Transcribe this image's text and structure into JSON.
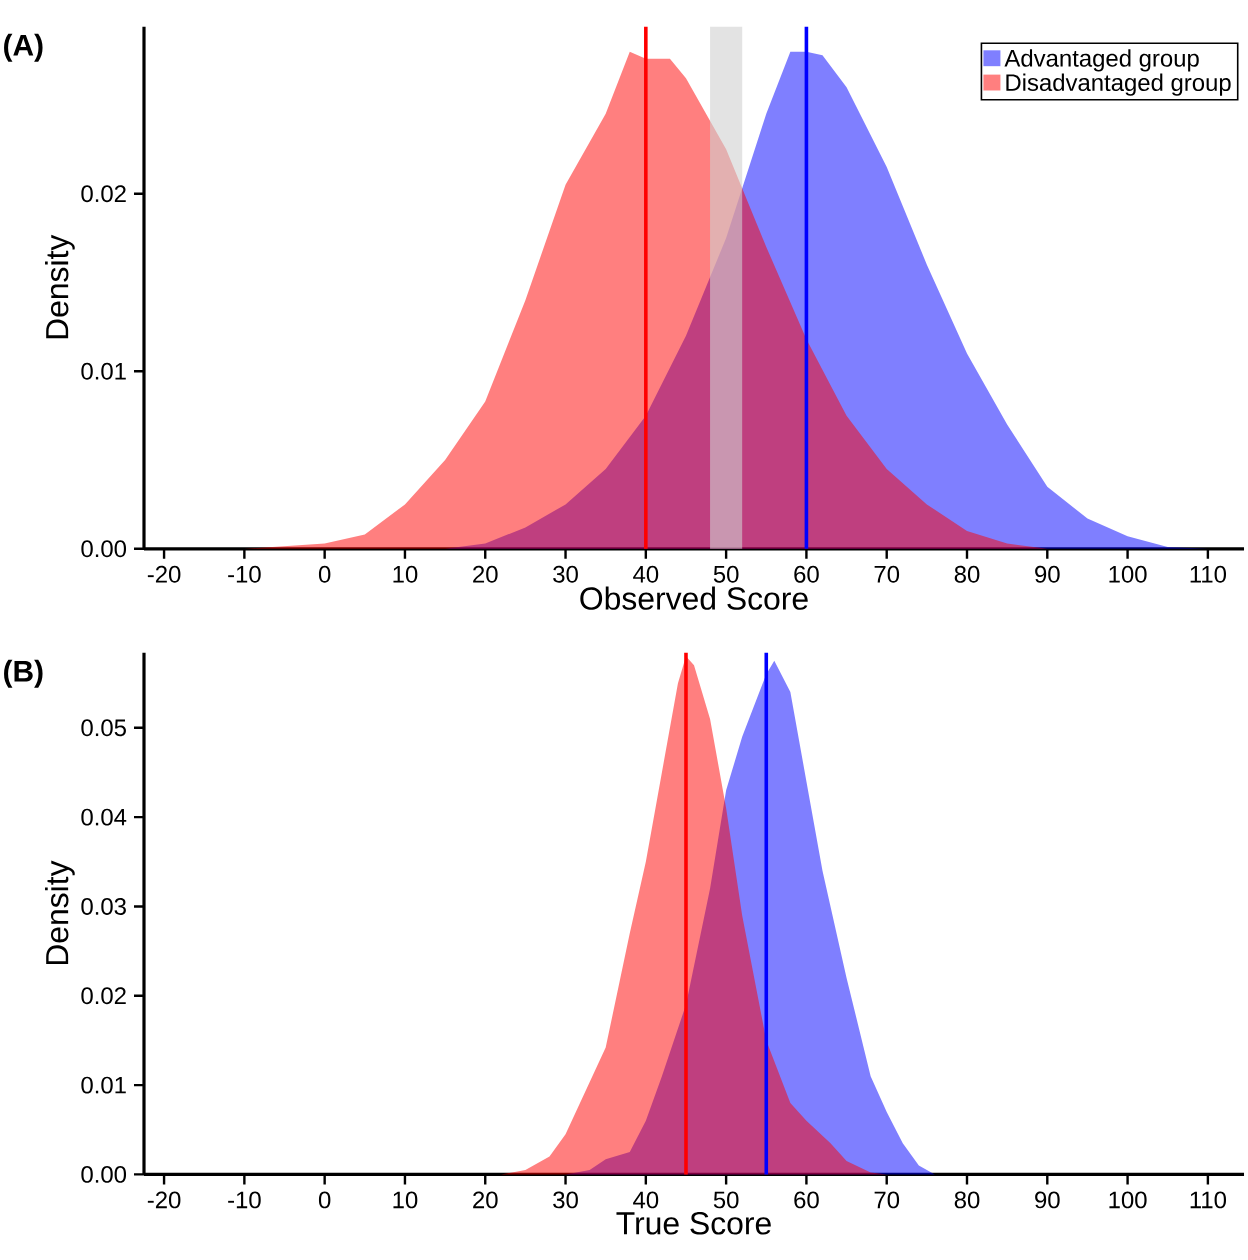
{
  "chart_data": [
    {
      "type": "area",
      "title": "(A)",
      "xlabel": "Observed Score",
      "ylabel": "Density",
      "xlim": [
        -22.5,
        114.5
      ],
      "ylim": [
        0,
        0.0294
      ],
      "xticks": [
        -20,
        -10,
        0,
        10,
        20,
        30,
        40,
        50,
        60,
        70,
        80,
        90,
        100,
        110
      ],
      "yticks": [
        {
          "value": 0,
          "label": "0.00"
        },
        {
          "value": 0.01,
          "label": "0.01"
        },
        {
          "value": 0.02,
          "label": "0.02"
        }
      ],
      "series": [
        {
          "name": "Advantaged group",
          "color": "#0000ff",
          "x": [
            15,
            20,
            25,
            30,
            35,
            40,
            45,
            50,
            55,
            58,
            60,
            62,
            65,
            70,
            75,
            80,
            85,
            90,
            95,
            100,
            105,
            110
          ],
          "values": [
            0,
            0.0003,
            0.0012,
            0.0025,
            0.0045,
            0.0075,
            0.012,
            0.0175,
            0.0245,
            0.028,
            0.028,
            0.0278,
            0.026,
            0.0215,
            0.016,
            0.011,
            0.007,
            0.0035,
            0.0017,
            0.0007,
            0.0001,
            0
          ]
        },
        {
          "name": "Disadvantaged group",
          "color": "#ff0000",
          "x": [
            -10,
            0,
            5,
            10,
            15,
            20,
            25,
            30,
            35,
            38,
            40,
            43,
            45,
            50,
            55,
            60,
            65,
            70,
            75,
            80,
            85,
            90
          ],
          "values": [
            0,
            0.0003,
            0.0008,
            0.0025,
            0.005,
            0.0083,
            0.014,
            0.0205,
            0.0245,
            0.028,
            0.0276,
            0.0276,
            0.0265,
            0.0225,
            0.017,
            0.0118,
            0.0075,
            0.0045,
            0.0025,
            0.001,
            0.0003,
            0
          ]
        }
      ],
      "ref_lines": [
        {
          "axis": "x",
          "value": 40,
          "color": "#ff0000"
        },
        {
          "axis": "x",
          "value": 60,
          "color": "#0000ff"
        }
      ],
      "bands": [
        {
          "axis": "x",
          "from": 48,
          "to": 52,
          "color": "#d0d0d0"
        }
      ],
      "legend": "top right",
      "grid": false
    },
    {
      "type": "area",
      "title": "(B)",
      "xlabel": "True Score",
      "ylabel": "Density",
      "xlim": [
        -22.5,
        114.5
      ],
      "ylim": [
        0,
        0.0584
      ],
      "xticks": [
        -20,
        -10,
        0,
        10,
        20,
        30,
        40,
        50,
        60,
        70,
        80,
        90,
        100,
        110
      ],
      "yticks": [
        {
          "value": 0,
          "label": "0.00"
        },
        {
          "value": 0.01,
          "label": "0.01"
        },
        {
          "value": 0.02,
          "label": "0.02"
        },
        {
          "value": 0.03,
          "label": "0.03"
        },
        {
          "value": 0.04,
          "label": "0.04"
        },
        {
          "value": 0.05,
          "label": "0.05"
        }
      ],
      "series": [
        {
          "color": "#0000ff",
          "x": [
            30,
            33,
            35,
            38,
            40,
            42,
            45,
            48,
            50,
            52,
            55,
            56,
            58,
            60,
            62,
            65,
            68,
            70,
            72,
            74,
            76
          ],
          "values": [
            0,
            0.0005,
            0.0017,
            0.0025,
            0.006,
            0.011,
            0.019,
            0.032,
            0.043,
            0.049,
            0.056,
            0.0575,
            0.054,
            0.044,
            0.034,
            0.022,
            0.011,
            0.007,
            0.0035,
            0.001,
            0
          ]
        },
        {
          "color": "#ff0000",
          "x": [
            22,
            25,
            28,
            30,
            35,
            38,
            40,
            42,
            44,
            45,
            46,
            48,
            50,
            52,
            55,
            58,
            60,
            63,
            65,
            68,
            70
          ],
          "values": [
            0,
            0.0005,
            0.002,
            0.0045,
            0.0142,
            0.027,
            0.035,
            0.045,
            0.055,
            0.058,
            0.057,
            0.051,
            0.041,
            0.029,
            0.015,
            0.008,
            0.006,
            0.0035,
            0.0015,
            0.0002,
            0
          ]
        }
      ],
      "ref_lines": [
        {
          "axis": "x",
          "value": 45,
          "color": "#ff0000"
        },
        {
          "axis": "x",
          "value": 55,
          "color": "#0000ff"
        }
      ],
      "legend": false,
      "grid": false
    }
  ]
}
